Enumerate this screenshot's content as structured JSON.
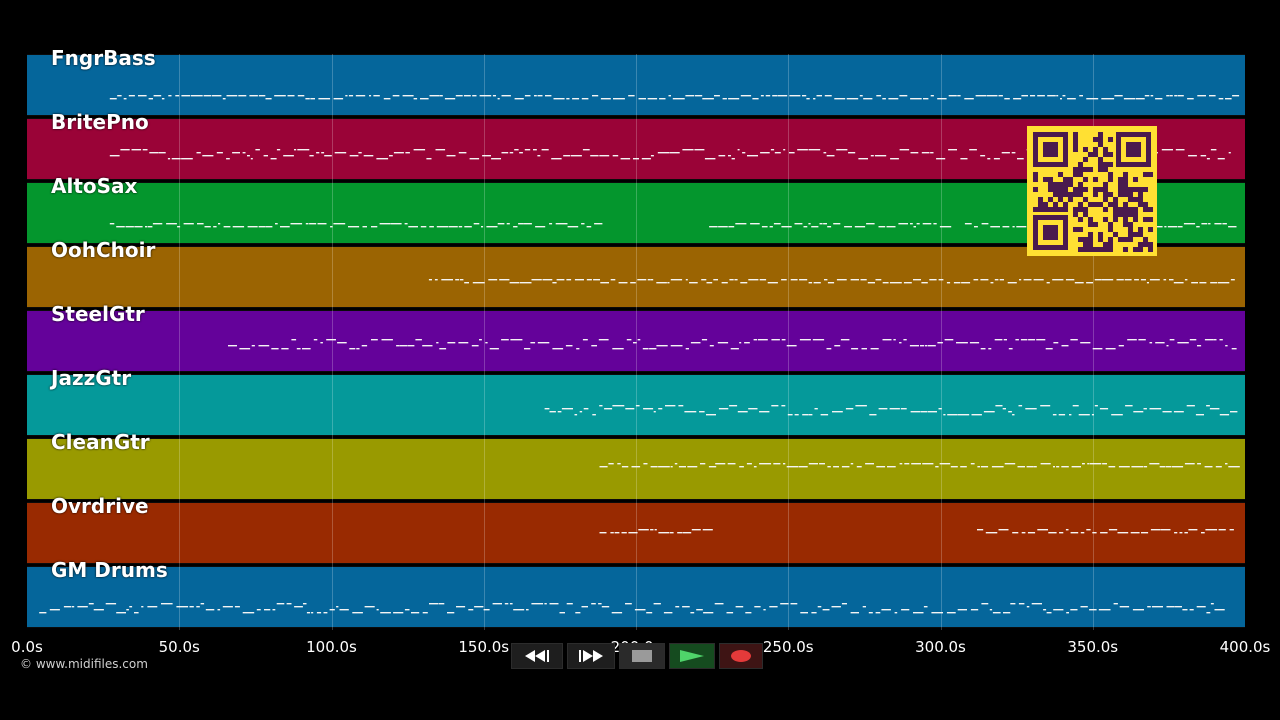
{
  "tracks": [
    {
      "name": "FngrBass",
      "color": "#05669b"
    },
    {
      "name": "BritePno",
      "color": "#9a0337"
    },
    {
      "name": "AltoSax",
      "color": "#04962d"
    },
    {
      "name": "OohChoir",
      "color": "#9b6402"
    },
    {
      "name": "SteelGtr",
      "color": "#64029a"
    },
    {
      "name": "JazzGtr",
      "color": "#05999a"
    },
    {
      "name": "CleanGtr",
      "color": "#999a00"
    },
    {
      "name": "Ovrdrive",
      "color": "#992a01"
    },
    {
      "name": "GM Drums",
      "color": "#05669b"
    }
  ],
  "timeline": {
    "ticks": [
      "0.0s",
      "50.0s",
      "100.0s",
      "150.0s",
      "200.0s",
      "250.0s",
      "300.0s",
      "350.0s",
      "400.0s"
    ]
  },
  "copyright": "© www.midifiles.com",
  "controls": [
    {
      "name": "rewind-button",
      "icon": "rewind-icon"
    },
    {
      "name": "fast-forward-button",
      "icon": "fast-forward-icon"
    },
    {
      "name": "stop-button",
      "icon": "stop-icon"
    },
    {
      "name": "play-button",
      "icon": "play-icon"
    },
    {
      "name": "record-button",
      "icon": "record-icon"
    }
  ],
  "overlay": {
    "icon": "qr-code-icon",
    "color": "#ffe033",
    "dark": "#4a1a4e"
  }
}
